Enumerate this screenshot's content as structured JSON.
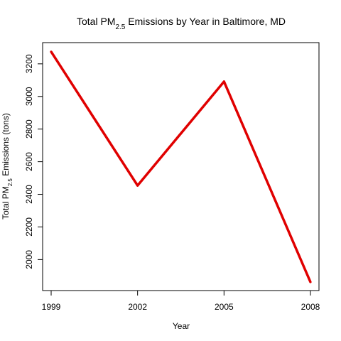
{
  "chart_data": {
    "type": "line",
    "title": {
      "prefix": "Total PM",
      "subscript": "2.5",
      "suffix": " Emissions by Year in Baltimore, MD"
    },
    "xlabel": "Year",
    "ylabel": {
      "prefix": "Total PM",
      "subscript": "2.5",
      "suffix": " Emissions (tons)"
    },
    "x": [
      1999,
      2002,
      2005,
      2008
    ],
    "values": [
      3274,
      2454,
      3091,
      1862
    ],
    "xticks": [
      "1999",
      "2002",
      "2005",
      "2008"
    ],
    "yticks": [
      "2000",
      "2200",
      "2400",
      "2600",
      "2800",
      "3000",
      "3200"
    ],
    "ylim": [
      1810,
      3330
    ],
    "xlim": [
      1998.9,
      2008.1
    ],
    "line_color": "#e00000",
    "grid": false,
    "legend": "none"
  }
}
